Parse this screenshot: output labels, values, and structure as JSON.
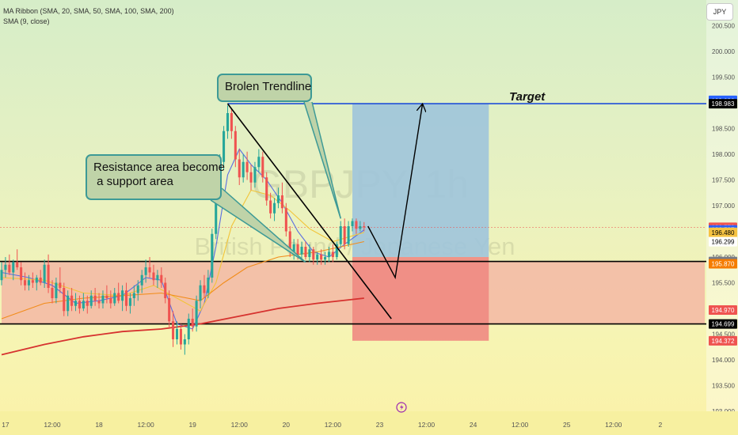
{
  "legend": {
    "ma_ribbon": "MA Ribbon (SMA, 20, SMA, 50, SMA, 100, SMA, 200)",
    "sma": "SMA (9, close)"
  },
  "currency_button": "JPY",
  "watermark": {
    "symbol": "GBPJPY, 1h",
    "description": "British Pound / Japanese Yen"
  },
  "annotations": {
    "broken_trendline": "Brolen Trendline",
    "resistance_support": "Resistance area become\n a support area",
    "target": "Target"
  },
  "colors": {
    "bull": "#26a69a",
    "bear": "#ef5350",
    "sma20": "#5b6ee1",
    "sma50": "#f2c438",
    "sma100": "#f28c1a",
    "sma200": "#d6322f",
    "profit_zone": "#9fc4dc",
    "loss_zone": "#f08a82",
    "support_zone": "#f3b7a4",
    "target_line": "#1f4fd8"
  },
  "chart_data": {
    "type": "candlestick",
    "symbol": "GBPJPY",
    "timeframe": "1h",
    "ylim": [
      193.0,
      201.0
    ],
    "y_ticks": [
      193.0,
      193.5,
      194.0,
      194.5,
      195.0,
      195.5,
      196.0,
      196.5,
      197.0,
      197.5,
      198.0,
      198.5,
      199.0,
      199.5,
      200.0,
      200.5
    ],
    "y_tick_labels": [
      "193.000",
      "193.500",
      "194.000",
      "194.500",
      "195.000",
      "195.500",
      "196.000",
      "196.500",
      "197.000",
      "197.500",
      "198.000",
      "198.500",
      "199.000",
      "199.500",
      "200.000",
      "200.500"
    ],
    "x_range_hours": [
      -1,
      179
    ],
    "x_ticks": [
      {
        "t": 0,
        "label": "17"
      },
      {
        "t": 12,
        "label": "12:00"
      },
      {
        "t": 24,
        "label": "18"
      },
      {
        "t": 36,
        "label": "12:00"
      },
      {
        "t": 48,
        "label": "19"
      },
      {
        "t": 60,
        "label": "12:00"
      },
      {
        "t": 72,
        "label": "20"
      },
      {
        "t": 84,
        "label": "12:00"
      },
      {
        "t": 96,
        "label": "23"
      },
      {
        "t": 108,
        "label": "12:00"
      },
      {
        "t": 120,
        "label": "24"
      },
      {
        "t": 132,
        "label": "12:00"
      },
      {
        "t": 144,
        "label": "25"
      },
      {
        "t": 156,
        "label": "12:00"
      },
      {
        "t": 168,
        "label": "2"
      }
    ],
    "price_tags": [
      {
        "value": 199.049,
        "label": "199.049",
        "bg": "#2962ff",
        "fg": "#ffffff"
      },
      {
        "value": 199.036,
        "label": "199.036",
        "bg": "#2962ff",
        "fg": "#ffffff"
      },
      {
        "value": 198.983,
        "label": "198.983",
        "bg": "#000000",
        "fg": "#ffffff"
      },
      {
        "value": 196.578,
        "label": "196.578",
        "bg": "#ef5350",
        "fg": "#ffffff"
      },
      {
        "value": 196.527,
        "label": "196.527",
        "bg": "#2962ff",
        "fg": "#ffffff"
      },
      {
        "value": 196.48,
        "label": "196.480",
        "bg": "#f6c343",
        "fg": "#000000"
      },
      {
        "value": 196.299,
        "label": "196.299",
        "bg": "#ffffff",
        "fg": "#000000"
      },
      {
        "value": 195.914,
        "label": "195.914",
        "bg": "#787b86",
        "fg": "#ffffff"
      },
      {
        "value": 195.87,
        "label": "195.870",
        "bg": "#f57c00",
        "fg": "#ffffff"
      },
      {
        "value": 194.97,
        "label": "194.970",
        "bg": "#ef5350",
        "fg": "#ffffff"
      },
      {
        "value": 194.699,
        "label": "194.699",
        "bg": "#000000",
        "fg": "#ffffff"
      },
      {
        "value": 194.372,
        "label": "194.372",
        "bg": "#ef5350",
        "fg": "#ffffff"
      }
    ],
    "candles": [
      {
        "t": -1,
        "o": 195.55,
        "h": 195.9,
        "l": 195.45,
        "c": 195.75
      },
      {
        "t": 0,
        "o": 195.75,
        "h": 196.0,
        "l": 195.6,
        "c": 195.85
      },
      {
        "t": 1,
        "o": 195.85,
        "h": 196.05,
        "l": 195.65,
        "c": 195.7
      },
      {
        "t": 2,
        "o": 195.7,
        "h": 195.95,
        "l": 195.55,
        "c": 195.9
      },
      {
        "t": 3,
        "o": 195.9,
        "h": 196.15,
        "l": 195.75,
        "c": 195.8
      },
      {
        "t": 4,
        "o": 195.8,
        "h": 195.9,
        "l": 195.45,
        "c": 195.55
      },
      {
        "t": 5,
        "o": 195.55,
        "h": 195.7,
        "l": 195.35,
        "c": 195.45
      },
      {
        "t": 6,
        "o": 195.45,
        "h": 195.65,
        "l": 195.35,
        "c": 195.55
      },
      {
        "t": 7,
        "o": 195.55,
        "h": 195.7,
        "l": 195.4,
        "c": 195.5
      },
      {
        "t": 8,
        "o": 195.5,
        "h": 195.65,
        "l": 195.35,
        "c": 195.6
      },
      {
        "t": 9,
        "o": 195.6,
        "h": 195.75,
        "l": 195.45,
        "c": 195.5
      },
      {
        "t": 10,
        "o": 195.5,
        "h": 195.95,
        "l": 195.4,
        "c": 195.85
      },
      {
        "t": 11,
        "o": 195.85,
        "h": 196.05,
        "l": 195.3,
        "c": 195.4
      },
      {
        "t": 12,
        "o": 195.4,
        "h": 195.55,
        "l": 195.1,
        "c": 195.2
      },
      {
        "t": 13,
        "o": 195.2,
        "h": 195.6,
        "l": 195.1,
        "c": 195.5
      },
      {
        "t": 14,
        "o": 195.5,
        "h": 195.8,
        "l": 195.3,
        "c": 195.4
      },
      {
        "t": 15,
        "o": 195.4,
        "h": 195.5,
        "l": 194.85,
        "c": 194.95
      },
      {
        "t": 16,
        "o": 194.95,
        "h": 195.35,
        "l": 194.85,
        "c": 195.25
      },
      {
        "t": 17,
        "o": 195.25,
        "h": 195.4,
        "l": 194.95,
        "c": 195.05
      },
      {
        "t": 18,
        "o": 195.05,
        "h": 195.3,
        "l": 194.95,
        "c": 195.15
      },
      {
        "t": 19,
        "o": 195.15,
        "h": 195.25,
        "l": 194.9,
        "c": 195.0
      },
      {
        "t": 20,
        "o": 195.0,
        "h": 195.3,
        "l": 194.95,
        "c": 195.15
      },
      {
        "t": 21,
        "o": 195.15,
        "h": 195.25,
        "l": 194.9,
        "c": 195.05
      },
      {
        "t": 22,
        "o": 195.05,
        "h": 195.35,
        "l": 195.0,
        "c": 195.25
      },
      {
        "t": 23,
        "o": 195.25,
        "h": 195.4,
        "l": 195.05,
        "c": 195.15
      },
      {
        "t": 24,
        "o": 195.15,
        "h": 195.3,
        "l": 195.0,
        "c": 195.1
      },
      {
        "t": 25,
        "o": 195.1,
        "h": 195.35,
        "l": 195.0,
        "c": 195.25
      },
      {
        "t": 26,
        "o": 195.25,
        "h": 195.45,
        "l": 195.1,
        "c": 195.2
      },
      {
        "t": 27,
        "o": 195.2,
        "h": 195.35,
        "l": 195.0,
        "c": 195.1
      },
      {
        "t": 28,
        "o": 195.1,
        "h": 195.4,
        "l": 195.05,
        "c": 195.3
      },
      {
        "t": 29,
        "o": 195.3,
        "h": 195.5,
        "l": 195.1,
        "c": 195.15
      },
      {
        "t": 30,
        "o": 195.15,
        "h": 195.45,
        "l": 194.95,
        "c": 195.35
      },
      {
        "t": 31,
        "o": 195.35,
        "h": 195.5,
        "l": 194.95,
        "c": 195.05
      },
      {
        "t": 32,
        "o": 195.05,
        "h": 195.3,
        "l": 194.9,
        "c": 195.2
      },
      {
        "t": 33,
        "o": 195.2,
        "h": 195.45,
        "l": 195.05,
        "c": 195.3
      },
      {
        "t": 34,
        "o": 195.3,
        "h": 195.55,
        "l": 195.15,
        "c": 195.45
      },
      {
        "t": 35,
        "o": 195.45,
        "h": 195.75,
        "l": 195.3,
        "c": 195.65
      },
      {
        "t": 36,
        "o": 195.65,
        "h": 195.95,
        "l": 195.5,
        "c": 195.8
      },
      {
        "t": 37,
        "o": 195.8,
        "h": 196.0,
        "l": 195.6,
        "c": 195.7
      },
      {
        "t": 38,
        "o": 195.7,
        "h": 195.85,
        "l": 195.45,
        "c": 195.55
      },
      {
        "t": 39,
        "o": 195.55,
        "h": 195.75,
        "l": 195.4,
        "c": 195.65
      },
      {
        "t": 40,
        "o": 195.65,
        "h": 195.8,
        "l": 195.4,
        "c": 195.5
      },
      {
        "t": 41,
        "o": 195.5,
        "h": 195.6,
        "l": 195.1,
        "c": 195.2
      },
      {
        "t": 42,
        "o": 195.2,
        "h": 195.35,
        "l": 194.6,
        "c": 194.75
      },
      {
        "t": 43,
        "o": 194.75,
        "h": 194.95,
        "l": 194.25,
        "c": 194.4
      },
      {
        "t": 44,
        "o": 194.4,
        "h": 194.75,
        "l": 194.3,
        "c": 194.6
      },
      {
        "t": 45,
        "o": 194.6,
        "h": 194.7,
        "l": 194.2,
        "c": 194.3
      },
      {
        "t": 46,
        "o": 194.3,
        "h": 194.5,
        "l": 194.1,
        "c": 194.4
      },
      {
        "t": 47,
        "o": 194.4,
        "h": 194.9,
        "l": 194.3,
        "c": 194.8
      },
      {
        "t": 48,
        "o": 194.8,
        "h": 195.0,
        "l": 194.55,
        "c": 194.65
      },
      {
        "t": 49,
        "o": 194.65,
        "h": 195.25,
        "l": 194.55,
        "c": 195.15
      },
      {
        "t": 50,
        "o": 195.15,
        "h": 195.55,
        "l": 195.0,
        "c": 195.45
      },
      {
        "t": 51,
        "o": 195.45,
        "h": 195.65,
        "l": 195.2,
        "c": 195.3
      },
      {
        "t": 52,
        "o": 195.3,
        "h": 195.75,
        "l": 195.2,
        "c": 195.6
      },
      {
        "t": 53,
        "o": 195.6,
        "h": 196.55,
        "l": 195.5,
        "c": 196.45
      },
      {
        "t": 54,
        "o": 196.45,
        "h": 197.35,
        "l": 196.35,
        "c": 197.25
      },
      {
        "t": 55,
        "o": 197.25,
        "h": 198.0,
        "l": 197.1,
        "c": 197.85
      },
      {
        "t": 56,
        "o": 197.85,
        "h": 198.55,
        "l": 197.7,
        "c": 198.45
      },
      {
        "t": 57,
        "o": 198.45,
        "h": 198.95,
        "l": 198.3,
        "c": 198.8
      },
      {
        "t": 58,
        "o": 198.8,
        "h": 198.9,
        "l": 198.3,
        "c": 198.45
      },
      {
        "t": 59,
        "o": 198.45,
        "h": 198.55,
        "l": 197.75,
        "c": 197.9
      },
      {
        "t": 60,
        "o": 197.9,
        "h": 198.1,
        "l": 197.4,
        "c": 197.55
      },
      {
        "t": 61,
        "o": 197.55,
        "h": 198.0,
        "l": 197.45,
        "c": 197.85
      },
      {
        "t": 62,
        "o": 197.85,
        "h": 198.05,
        "l": 197.5,
        "c": 197.65
      },
      {
        "t": 63,
        "o": 197.65,
        "h": 197.8,
        "l": 197.3,
        "c": 197.45
      },
      {
        "t": 64,
        "o": 197.45,
        "h": 197.85,
        "l": 197.35,
        "c": 197.75
      },
      {
        "t": 65,
        "o": 197.75,
        "h": 198.1,
        "l": 197.65,
        "c": 197.95
      },
      {
        "t": 66,
        "o": 197.95,
        "h": 198.05,
        "l": 197.45,
        "c": 197.55
      },
      {
        "t": 67,
        "o": 197.55,
        "h": 197.65,
        "l": 197.0,
        "c": 197.1
      },
      {
        "t": 68,
        "o": 197.1,
        "h": 197.25,
        "l": 196.75,
        "c": 196.85
      },
      {
        "t": 69,
        "o": 196.85,
        "h": 197.15,
        "l": 196.7,
        "c": 197.05
      },
      {
        "t": 70,
        "o": 197.05,
        "h": 197.35,
        "l": 196.95,
        "c": 197.2
      },
      {
        "t": 71,
        "o": 197.2,
        "h": 197.45,
        "l": 196.85,
        "c": 196.95
      },
      {
        "t": 72,
        "o": 196.95,
        "h": 197.05,
        "l": 196.4,
        "c": 196.5
      },
      {
        "t": 73,
        "o": 196.5,
        "h": 196.6,
        "l": 196.0,
        "c": 196.1
      },
      {
        "t": 74,
        "o": 196.1,
        "h": 196.35,
        "l": 195.95,
        "c": 196.25
      },
      {
        "t": 75,
        "o": 196.25,
        "h": 196.35,
        "l": 195.95,
        "c": 196.05
      },
      {
        "t": 76,
        "o": 196.05,
        "h": 196.3,
        "l": 195.95,
        "c": 196.2
      },
      {
        "t": 77,
        "o": 196.2,
        "h": 196.3,
        "l": 195.95,
        "c": 196.0
      },
      {
        "t": 78,
        "o": 196.0,
        "h": 196.25,
        "l": 195.9,
        "c": 196.15
      },
      {
        "t": 79,
        "o": 196.15,
        "h": 196.2,
        "l": 195.85,
        "c": 195.95
      },
      {
        "t": 80,
        "o": 195.95,
        "h": 196.1,
        "l": 195.85,
        "c": 196.05
      },
      {
        "t": 81,
        "o": 196.05,
        "h": 196.15,
        "l": 195.85,
        "c": 195.95
      },
      {
        "t": 82,
        "o": 195.95,
        "h": 196.1,
        "l": 195.85,
        "c": 196.0
      },
      {
        "t": 83,
        "o": 196.0,
        "h": 196.2,
        "l": 195.9,
        "c": 196.1
      },
      {
        "t": 84,
        "o": 196.1,
        "h": 196.25,
        "l": 195.9,
        "c": 196.0
      },
      {
        "t": 85,
        "o": 196.0,
        "h": 196.3,
        "l": 195.95,
        "c": 196.25
      },
      {
        "t": 86,
        "o": 196.25,
        "h": 196.7,
        "l": 196.2,
        "c": 196.6
      },
      {
        "t": 87,
        "o": 196.6,
        "h": 196.75,
        "l": 196.15,
        "c": 196.25
      },
      {
        "t": 88,
        "o": 196.25,
        "h": 196.7,
        "l": 196.2,
        "c": 196.6
      },
      {
        "t": 89,
        "o": 196.6,
        "h": 196.75,
        "l": 196.5,
        "c": 196.7
      },
      {
        "t": 90,
        "o": 196.7,
        "h": 196.75,
        "l": 196.45,
        "c": 196.55
      },
      {
        "t": 91,
        "o": 196.55,
        "h": 196.7,
        "l": 196.5,
        "c": 196.6
      },
      {
        "t": 92,
        "o": 196.6,
        "h": 196.68,
        "l": 196.5,
        "c": 196.578
      }
    ],
    "series": [
      {
        "name": "SMA 9",
        "color": "#5b6ee1",
        "points": [
          [
            -1,
            195.7
          ],
          [
            6,
            195.6
          ],
          [
            12,
            195.45
          ],
          [
            18,
            195.1
          ],
          [
            24,
            195.15
          ],
          [
            30,
            195.25
          ],
          [
            36,
            195.6
          ],
          [
            40,
            195.55
          ],
          [
            44,
            194.7
          ],
          [
            48,
            194.6
          ],
          [
            51,
            195.1
          ],
          [
            54,
            196.2
          ],
          [
            57,
            197.6
          ],
          [
            60,
            198.1
          ],
          [
            63,
            197.8
          ],
          [
            67,
            197.5
          ],
          [
            71,
            197.05
          ],
          [
            75,
            196.5
          ],
          [
            79,
            196.1
          ],
          [
            83,
            196.0
          ],
          [
            87,
            196.25
          ],
          [
            92,
            196.527
          ]
        ]
      },
      {
        "name": "SMA 20",
        "color": "#f2c438",
        "points": [
          [
            -1,
            195.6
          ],
          [
            10,
            195.55
          ],
          [
            20,
            195.3
          ],
          [
            30,
            195.25
          ],
          [
            38,
            195.45
          ],
          [
            44,
            195.2
          ],
          [
            50,
            194.95
          ],
          [
            54,
            195.5
          ],
          [
            58,
            196.6
          ],
          [
            63,
            197.3
          ],
          [
            68,
            197.2
          ],
          [
            73,
            196.9
          ],
          [
            78,
            196.55
          ],
          [
            84,
            196.3
          ],
          [
            92,
            196.48
          ]
        ]
      },
      {
        "name": "SMA 50",
        "color": "#f28c1a",
        "points": [
          [
            -1,
            194.8
          ],
          [
            10,
            195.1
          ],
          [
            20,
            195.2
          ],
          [
            30,
            195.25
          ],
          [
            40,
            195.3
          ],
          [
            50,
            195.15
          ],
          [
            56,
            195.5
          ],
          [
            62,
            195.8
          ],
          [
            70,
            196.0
          ],
          [
            80,
            196.1
          ],
          [
            92,
            196.3
          ]
        ]
      },
      {
        "name": "SMA 200",
        "color": "#d6322f",
        "points": [
          [
            -1,
            194.1
          ],
          [
            10,
            194.3
          ],
          [
            20,
            194.45
          ],
          [
            30,
            194.55
          ],
          [
            40,
            194.6
          ],
          [
            50,
            194.7
          ],
          [
            60,
            194.85
          ],
          [
            70,
            195.0
          ],
          [
            80,
            195.1
          ],
          [
            92,
            195.2
          ]
        ]
      }
    ],
    "horizontal_lines": [
      {
        "name": "target-line",
        "value": 198.983,
        "color": "#1f4fd8"
      },
      {
        "name": "support-top-line",
        "value": 195.914,
        "color": "#000000"
      },
      {
        "name": "support-bottom-line",
        "value": 194.699,
        "color": "#000000"
      },
      {
        "name": "current-price-line",
        "value": 196.578,
        "color": "#ef5350"
      }
    ],
    "zones": [
      {
        "name": "support-zone",
        "t0": -1,
        "t1": 179,
        "y0": 194.699,
        "y1": 195.914,
        "color": "#f3b7a4"
      },
      {
        "name": "profit-zone",
        "t0": 89,
        "t1": 124,
        "y0": 196.0,
        "y1": 198.983,
        "color": "#9fc4dc"
      },
      {
        "name": "loss-zone",
        "t0": 89,
        "t1": 124,
        "y0": 194.372,
        "y1": 196.0,
        "color": "#f08a82"
      }
    ],
    "trendline": {
      "t0": 57,
      "p0": 198.983,
      "t1": 99,
      "p1": 194.8
    },
    "projection_path": [
      [
        93,
        196.6
      ],
      [
        100,
        195.6
      ],
      [
        107,
        198.983
      ]
    ]
  }
}
